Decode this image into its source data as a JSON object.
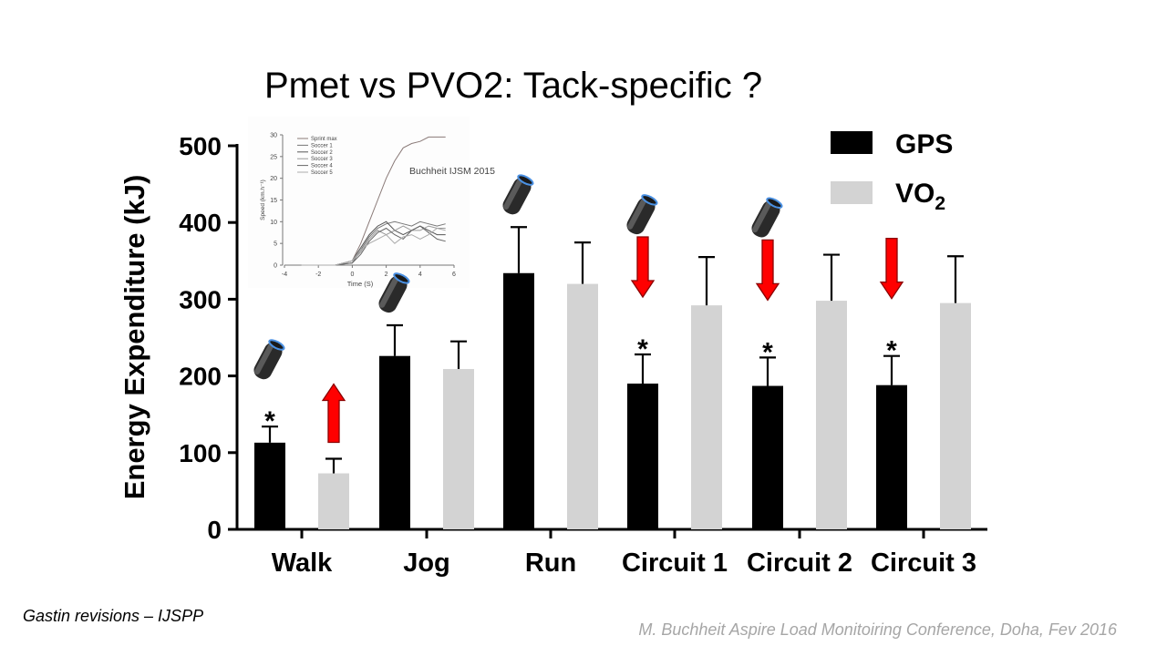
{
  "slide": {
    "title": "Pmet vs PVO2: Tack-specific ?",
    "left_note": "Gastin revisions – IJSPP",
    "right_note": "M. Buchheit Aspire Load Monitoiring Conference, Doha, Fev 2016"
  },
  "chart_data": {
    "type": "bar",
    "title": "",
    "xlabel": "",
    "ylabel": "Energy Expenditure (kJ)",
    "ylim": [
      0,
      500
    ],
    "yticks": [
      "0",
      "100",
      "200",
      "300",
      "400",
      "500"
    ],
    "categories": [
      "Walk",
      "Jog",
      "Run",
      "Circuit 1",
      "Circuit 2",
      "Circuit 3"
    ],
    "series": [
      {
        "name": "GPS",
        "color": "#000000",
        "values": [
          113,
          226,
          334,
          190,
          187,
          188
        ],
        "error": [
          21,
          40,
          60,
          38,
          37,
          38
        ]
      },
      {
        "name": "VO2",
        "color": "#d3d3d3",
        "values": [
          73,
          209,
          320,
          292,
          298,
          295
        ],
        "error": [
          19,
          36,
          54,
          63,
          60,
          61
        ]
      }
    ],
    "legend": {
      "position": "top-right",
      "gps_label": "GPS",
      "vo2_label": "VO",
      "vo2_subscript": "2"
    },
    "significance": {
      "symbol": "*",
      "categories": [
        "Walk",
        "Circuit 1",
        "Circuit 2",
        "Circuit 3"
      ]
    },
    "arrows": [
      {
        "category": "Walk",
        "series": "VO2",
        "direction": "up",
        "color": "#ff0000"
      },
      {
        "category": "Circuit 1",
        "series": "GPS",
        "direction": "down",
        "color": "#ff0000"
      },
      {
        "category": "Circuit 2",
        "series": "GPS",
        "direction": "down",
        "color": "#ff0000"
      },
      {
        "category": "Circuit 3",
        "series": "GPS",
        "direction": "down",
        "color": "#ff0000"
      }
    ],
    "device_icon_categories": [
      "Walk",
      "Jog",
      "Run",
      "Circuit 1",
      "Circuit 2"
    ]
  },
  "inset_chart": {
    "type": "line",
    "annotation": "Buchheit IJSM 2015",
    "xlabel": "Time (S)",
    "ylabel": "Speed (km.h⁻¹)",
    "xlim": [
      -4,
      6
    ],
    "ylim": [
      0,
      30
    ],
    "xticks": [
      "-4",
      "-2",
      "0",
      "2",
      "4",
      "6"
    ],
    "yticks": [
      "0",
      "5",
      "10",
      "15",
      "20",
      "25",
      "30"
    ],
    "legend": [
      "Sprint max",
      "Soccer 1",
      "Soccer 2",
      "Soccer 3",
      "Soccer 4",
      "Soccer 5"
    ],
    "series": [
      {
        "name": "Sprint max",
        "color": "#8a7a78",
        "x": [
          -3,
          -1,
          0,
          0.5,
          1,
          1.5,
          2,
          2.5,
          3,
          3.5,
          4,
          4.5,
          5,
          5.5
        ],
        "y": [
          0,
          0,
          1,
          5,
          10,
          15,
          20,
          24,
          27,
          28,
          28.5,
          29.5,
          29.5,
          29.5
        ]
      },
      {
        "name": "Soccer 1",
        "color": "#777777",
        "x": [
          -3,
          -1,
          0,
          0.5,
          1,
          1.5,
          2,
          2.5,
          3,
          3.5,
          4,
          4.5,
          5,
          5.5
        ],
        "y": [
          0,
          0,
          0.5,
          3.5,
          6.5,
          8.5,
          9.5,
          10,
          9.5,
          9,
          10,
          9.5,
          9,
          9.5
        ]
      },
      {
        "name": "Soccer 2",
        "color": "#555555",
        "x": [
          -3,
          -1,
          0,
          0.5,
          1,
          1.5,
          2,
          2.5,
          3,
          3.5,
          4,
          4.5,
          5,
          5.5
        ],
        "y": [
          0,
          0,
          1,
          4,
          7,
          9,
          10,
          8,
          7,
          8,
          9,
          8,
          7,
          7
        ]
      },
      {
        "name": "Soccer 3",
        "color": "#999999",
        "x": [
          -3,
          -1,
          0,
          0.5,
          1,
          1.5,
          2,
          2.5,
          3,
          3.5,
          4,
          4.5,
          5,
          5.5
        ],
        "y": [
          0,
          0,
          1,
          3,
          6,
          8,
          7,
          8,
          9,
          8,
          8,
          9,
          8.5,
          8.5
        ]
      },
      {
        "name": "Soccer 4",
        "color": "#666666",
        "x": [
          -3,
          -1,
          0,
          0.5,
          1,
          1.5,
          2,
          2.5,
          3,
          3.5,
          4,
          4.5,
          5,
          5.5
        ],
        "y": [
          0,
          0,
          0.5,
          2.5,
          5.5,
          7.5,
          8.5,
          7,
          6,
          8,
          9,
          7.5,
          6,
          5.5
        ]
      },
      {
        "name": "Soccer 5",
        "color": "#aaaaaa",
        "x": [
          -3,
          -1,
          0,
          0.5,
          1,
          1.5,
          2,
          2.5,
          3,
          3.5,
          4,
          4.5,
          5,
          5.5
        ],
        "y": [
          0,
          0,
          1,
          3.5,
          5,
          6,
          7,
          5,
          6.5,
          7,
          6,
          7,
          8.5,
          8
        ]
      }
    ]
  }
}
